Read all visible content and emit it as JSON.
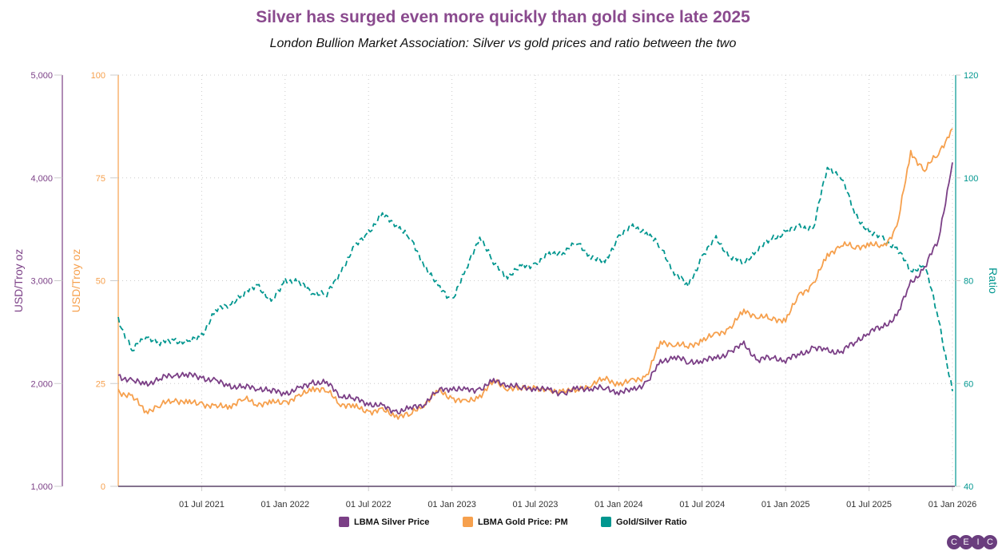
{
  "chart_data": {
    "type": "line",
    "title": "Silver has surged even more quickly than gold since late 2025",
    "subtitle": "London Bullion Market Association: Silver vs gold prices and ratio between the two",
    "x": [
      "2021-01",
      "2021-02",
      "2021-03",
      "2021-04",
      "2021-05",
      "2021-06",
      "2021-07",
      "2021-08",
      "2021-09",
      "2021-10",
      "2021-11",
      "2021-12",
      "2022-01",
      "2022-02",
      "2022-03",
      "2022-04",
      "2022-05",
      "2022-06",
      "2022-07",
      "2022-08",
      "2022-09",
      "2022-10",
      "2022-11",
      "2022-12",
      "2023-01",
      "2023-02",
      "2023-03",
      "2023-04",
      "2023-05",
      "2023-06",
      "2023-07",
      "2023-08",
      "2023-09",
      "2023-10",
      "2023-11",
      "2023-12",
      "2024-01",
      "2024-02",
      "2024-03",
      "2024-04",
      "2024-05",
      "2024-06",
      "2024-07",
      "2024-08",
      "2024-09",
      "2024-10",
      "2024-11",
      "2024-12",
      "2025-01",
      "2025-02",
      "2025-03",
      "2025-04",
      "2025-05",
      "2025-06",
      "2025-07",
      "2025-08",
      "2025-09",
      "2025-10",
      "2025-11",
      "2025-12",
      "2026-01"
    ],
    "x_ticks": [
      "01 Jul 2021",
      "01 Jan 2022",
      "01 Jul 2022",
      "01 Jan 2023",
      "01 Jul 2023",
      "01 Jan 2024",
      "01 Jul 2024",
      "01 Jan 2025",
      "01 Jul 2025",
      "01 Jan 2026"
    ],
    "axes": {
      "left": {
        "label": "USD/Troy oz",
        "range": [
          1000,
          5000
        ],
        "ticks": [
          "1,000",
          "2,000",
          "3,000",
          "4,000",
          "5,000"
        ],
        "color": "#7b3f86"
      },
      "left2": {
        "label": "USD/Troy oz",
        "range": [
          0,
          100
        ],
        "ticks": [
          "0",
          "25",
          "50",
          "75",
          "100"
        ],
        "color": "#f6a04d"
      },
      "right": {
        "label": "Ratio",
        "range": [
          40,
          120
        ],
        "ticks": [
          "40",
          "60",
          "80",
          "100",
          "120"
        ],
        "color": "#00968f"
      }
    },
    "grid": true,
    "legend_position": "bottom",
    "series": [
      {
        "name": "LBMA Silver Price",
        "axis": "left",
        "color": "#7b3f86",
        "style": "solid",
        "values": [
          2080,
          2017,
          2000,
          2040,
          2095,
          2080,
          2064,
          2017,
          1980,
          1960,
          1965,
          1925,
          1910,
          1940,
          2017,
          2000,
          1890,
          1847,
          1810,
          1770,
          1730,
          1750,
          1810,
          1925,
          1963,
          1925,
          1950,
          2017,
          2000,
          1950,
          1963,
          1925,
          1910,
          1940,
          1963,
          1948,
          1925,
          1925,
          2017,
          2196,
          2274,
          2196,
          2235,
          2235,
          2313,
          2375,
          2235,
          2250,
          2235,
          2274,
          2351,
          2313,
          2313,
          2400,
          2507,
          2546,
          2662,
          2973,
          3130,
          3400,
          4150
        ]
      },
      {
        "name": "LBMA Gold Price: PM",
        "axis": "left2",
        "color": "#f6a04d",
        "style": "solid",
        "values": [
          23.1,
          21.7,
          18.3,
          19.6,
          21.2,
          20.2,
          20.2,
          19.2,
          19.6,
          21.2,
          20.2,
          20.2,
          20.6,
          21.6,
          24.1,
          23.1,
          20.2,
          19.2,
          18.3,
          18.3,
          17.3,
          17.3,
          20.2,
          23.1,
          21.6,
          20.2,
          22.1,
          25.4,
          24.1,
          23.5,
          24.3,
          22.7,
          23.5,
          23.1,
          25.0,
          26.0,
          25.0,
          25.4,
          27.0,
          34.8,
          34.8,
          33.8,
          35.7,
          36.7,
          38.6,
          42.5,
          41.5,
          40.6,
          40.6,
          46.4,
          49.3,
          56.0,
          59.0,
          58.0,
          59.0,
          58.0,
          63.0,
          81.0,
          77.0,
          81.0,
          87.0
        ]
      },
      {
        "name": "Gold/Silver Ratio",
        "axis": "right",
        "color": "#00968f",
        "style": "dashed",
        "values": [
          72.5,
          66.3,
          69.4,
          67.8,
          68.6,
          67.8,
          69.4,
          74.1,
          75.6,
          77.2,
          79.5,
          75.6,
          80.2,
          79.5,
          77.9,
          77.2,
          81.8,
          86.4,
          89.6,
          92.7,
          91.1,
          88.0,
          83.3,
          78.7,
          76.4,
          81.8,
          88.8,
          83.3,
          81.0,
          82.6,
          83.3,
          84.9,
          85.7,
          87.2,
          84.9,
          83.3,
          88.8,
          90.3,
          89.6,
          86.4,
          81.8,
          78.7,
          84.9,
          88.0,
          84.9,
          83.3,
          86.4,
          88.0,
          89.6,
          90.3,
          90.3,
          102.0,
          100.4,
          92.7,
          89.6,
          88.0,
          86.4,
          81.8,
          83.3,
          72.5,
          58.5
        ]
      }
    ]
  },
  "logo": "CEIC"
}
